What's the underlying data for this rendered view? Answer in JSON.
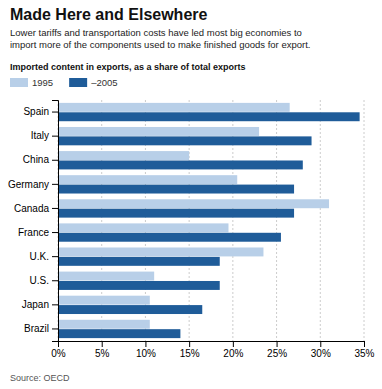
{
  "chart_data": {
    "type": "bar",
    "orientation": "horizontal",
    "title": "Made Here and Elsewhere",
    "subtitle": "Lower tariffs and transportation costs have led most big economies to\nimport more of the components used to make finished goods for export.",
    "legend_title": "Imported content in exports, as a share of total exports",
    "source": "Source: OECD",
    "categories": [
      "Spain",
      "Italy",
      "China",
      "Germany",
      "Canada",
      "France",
      "U.K.",
      "U.S.",
      "Japan",
      "Brazil"
    ],
    "series": [
      {
        "name": "1995",
        "color": "#b8cfe8",
        "values": [
          26.5,
          23.0,
          15.0,
          20.5,
          31.0,
          19.5,
          23.5,
          11.0,
          10.5,
          10.5
        ]
      },
      {
        "name": "–2005",
        "color": "#1f5c99",
        "values": [
          34.5,
          29.0,
          28.0,
          27.0,
          27.0,
          25.5,
          18.5,
          18.5,
          16.5,
          14.0
        ]
      }
    ],
    "xlim": [
      0,
      35
    ],
    "xticks": [
      {
        "value": 0,
        "label": "0%"
      },
      {
        "value": 5,
        "label": "5%"
      },
      {
        "value": 10,
        "label": "10%"
      },
      {
        "value": 15,
        "label": "15%"
      },
      {
        "value": 20,
        "label": "20%"
      },
      {
        "value": 25,
        "label": "25%"
      },
      {
        "value": 30,
        "label": "30%"
      },
      {
        "value": 35,
        "label": "35%"
      }
    ],
    "grid": true
  }
}
